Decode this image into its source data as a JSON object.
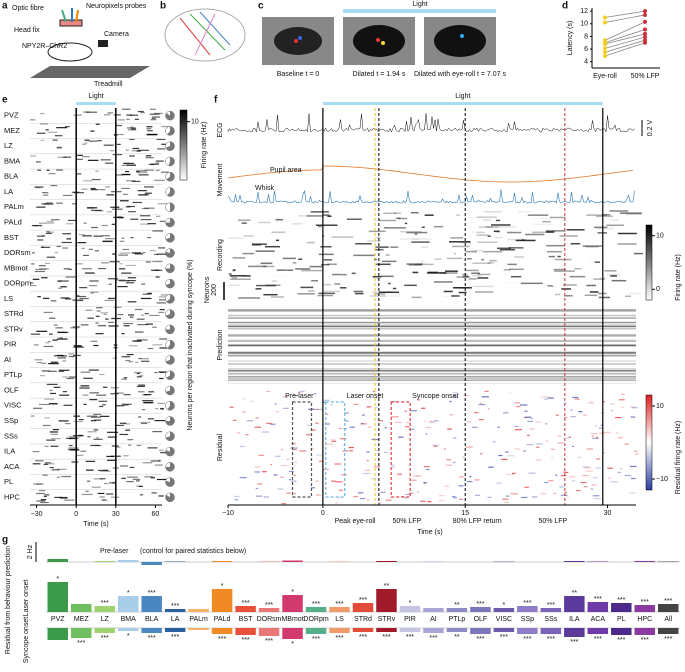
{
  "panel_labels": [
    "a",
    "b",
    "c",
    "d",
    "e",
    "f",
    "g"
  ],
  "a": {
    "labels": [
      "Optic fibre",
      "Neuropixels probes",
      "Head fix",
      "Camera",
      "NPY2R–ChR2",
      "Treadmill"
    ]
  },
  "c": {
    "light": "Light",
    "captions": [
      "Baseline t = 0",
      "Dilated t = 1.94 s",
      "Dilated with eye-roll t = 7.07 s"
    ]
  },
  "d": {
    "ylabel": "Latency (s)",
    "ylim": [
      3,
      12.5
    ],
    "yticks": [
      4,
      6,
      8,
      10,
      12
    ],
    "categories": [
      "Eye-roll",
      "50% LFP"
    ],
    "eye_roll": [
      4.9,
      5.5,
      6.1,
      6.8,
      7.0,
      7.4,
      10.2,
      11.0
    ],
    "lfp": [
      7.0,
      7.4,
      7.9,
      8.4,
      9.1,
      10.3,
      11.4,
      12.0
    ],
    "colors": [
      "#f2cf1d",
      "#c8303c"
    ]
  },
  "e": {
    "light": "Light",
    "regions": [
      "PVZ",
      "MEZ",
      "LZ",
      "BMA",
      "BLA",
      "LA",
      "PALm",
      "PALd",
      "BST",
      "DORsm",
      "MBmot",
      "DORpm",
      "LS",
      "STRd",
      "STRv",
      "PIR",
      "AI",
      "PTLp",
      "OLF",
      "VISC",
      "SSp",
      "SSs",
      "ILA",
      "ACA",
      "PL",
      "HPC"
    ],
    "xlim": [
      -35,
      65
    ],
    "xticks": [
      {
        "value": -30,
        "label": "−30"
      },
      0,
      30,
      60
    ],
    "xlabel": "Time (s)",
    "light_range": [
      0,
      30
    ],
    "colorbar_label": "Firing rate (Hz)",
    "colorbar_lim": [
      0,
      12
    ],
    "colorbar_ticks": [
      10
    ],
    "side_label": "Neurons per region that inactivated during syncope (%)",
    "pie_values": [
      85,
      60,
      70,
      55,
      65,
      60,
      50,
      75,
      70,
      80,
      75,
      70,
      65,
      70,
      75,
      60,
      70,
      65,
      70,
      60,
      75,
      70,
      80,
      75,
      80,
      85
    ]
  },
  "f": {
    "light": "Light",
    "row_labels": [
      "ECG",
      "Movement",
      "Recording",
      "Prediction",
      "Residual"
    ],
    "ecg_scale": "0.2 V",
    "pupil": "Pupil area",
    "whisk": "Whisk",
    "neurons_scale": "200",
    "neurons_label": "Neurons",
    "xlim": [
      -10,
      33
    ],
    "xticks": [
      {
        "value": -10,
        "label": "−10"
      },
      0,
      15,
      30
    ],
    "xlabel": "Time (s)",
    "light_range": [
      0,
      29.5
    ],
    "events": [
      {
        "time": 5.5,
        "label": "Peak eye-roll",
        "color": "#e8c21a"
      },
      {
        "time": 5.9,
        "label": "50% LFP",
        "color": "#000000"
      },
      {
        "time": 15,
        "label": "80% LFP return",
        "color": "#000000"
      },
      {
        "time": 25.5,
        "label": "50% LFP",
        "color": "#c8303c"
      }
    ],
    "boxes": [
      {
        "label": "Pre-laser",
        "range": [
          -3.2,
          -1.2
        ],
        "color": "#555555"
      },
      {
        "label": "Laser onset",
        "range": [
          0.3,
          2.3
        ],
        "color": "#6fb7e0"
      },
      {
        "label": "Syncope onset",
        "range": [
          7.2,
          9.2
        ],
        "color": "#e04040"
      }
    ],
    "cb1": {
      "label": "Firing rate (Hz)",
      "lim": [
        -2,
        12
      ],
      "ticks": [
        0,
        10
      ]
    },
    "cb2": {
      "label": "Residual firing rate (Hz)",
      "lim": [
        -13,
        13
      ],
      "ticks": [
        10,
        {
          "value": -10,
          "label": "−10"
        }
      ]
    }
  },
  "g": {
    "ylabel": "Residual from behaviour prediction",
    "row_labels": [
      "Pre-laser",
      "Laser onset",
      "Syncope onset"
    ],
    "note": "(control for paired statistics below)",
    "scale": "2 Hz",
    "scale_value": 2,
    "categories": [
      "PVZ",
      "MEZ",
      "LZ",
      "BMA",
      "BLA",
      "LA",
      "PALm",
      "PALd",
      "BST",
      "DORsm",
      "MBmot",
      "DORpm",
      "LS",
      "STRd",
      "STRv",
      "PIR",
      "AI",
      "PTLp",
      "OLF",
      "VISC",
      "SSp",
      "SSs",
      "ILA",
      "ACA",
      "PL",
      "HPC",
      "All"
    ],
    "colors": [
      "#3a9a4a",
      "#6fbf5f",
      "#9ed36f",
      "#a8cde8",
      "#4a86c0",
      "#2a5fa0",
      "#f6b26b",
      "#f08a24",
      "#e8503a",
      "#e87878",
      "#d23a6e",
      "#54b08a",
      "#f09a6a",
      "#e24a3a",
      "#a01a2a",
      "#c6c4e4",
      "#a9a6d4",
      "#8f8cc4",
      "#7a76b8",
      "#6a5aa8",
      "#8f7cc8",
      "#7a62b4",
      "#5a3a9a",
      "#6e3aa6",
      "#4a2a8a",
      "#8a3aa0",
      "#444444"
    ],
    "pre": [
      0.3,
      0.0,
      0.1,
      0.2,
      -0.3,
      0.05,
      0.0,
      0.1,
      0.0,
      0.05,
      0.15,
      0.0,
      0.05,
      0.0,
      0.1,
      0.0,
      0.05,
      0.0,
      0.0,
      0.05,
      0.0,
      0.0,
      0.1,
      0.05,
      0.0,
      0.1,
      0.05
    ],
    "laser": [
      3.0,
      0.8,
      0.6,
      1.6,
      1.6,
      0.3,
      0.3,
      2.3,
      0.6,
      0.4,
      1.7,
      0.5,
      0.5,
      0.9,
      2.3,
      0.6,
      0.4,
      0.4,
      0.5,
      0.4,
      0.6,
      0.4,
      1.6,
      1.0,
      0.9,
      0.7,
      0.8
    ],
    "syncope": [
      -1.2,
      -1.0,
      -0.5,
      -0.3,
      -0.5,
      -0.4,
      -0.2,
      -0.6,
      -0.7,
      -0.8,
      -1.1,
      -0.6,
      -0.5,
      -0.4,
      -0.4,
      -0.4,
      -0.5,
      -0.4,
      -0.6,
      -0.4,
      -0.6,
      -0.6,
      -0.9,
      -0.6,
      -0.7,
      -0.7,
      -0.6
    ],
    "laser_stars": [
      "*",
      null,
      "***",
      "*",
      "***",
      "***",
      null,
      "*",
      "***",
      "***",
      "*",
      "***",
      "***",
      "***",
      "**",
      "*",
      null,
      "**",
      "***",
      "*",
      "***",
      "***",
      "**",
      "***",
      "***",
      "***",
      "***"
    ],
    "syncope_stars": [
      null,
      "***",
      "***",
      "*",
      "***",
      "***",
      null,
      "***",
      "***",
      "***",
      "*",
      "***",
      "***",
      "***",
      "***",
      "***",
      "***",
      "**",
      "***",
      "***",
      "***",
      "***",
      "***",
      "***",
      "***",
      "***",
      "***"
    ]
  }
}
